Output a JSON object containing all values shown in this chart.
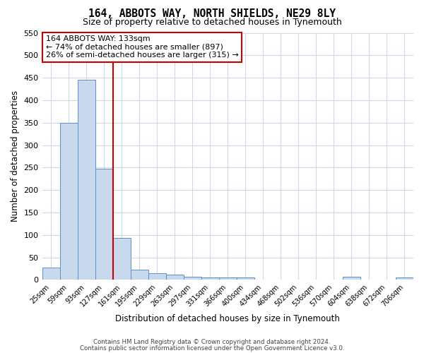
{
  "title": "164, ABBOTS WAY, NORTH SHIELDS, NE29 8LY",
  "subtitle": "Size of property relative to detached houses in Tynemouth",
  "xlabel": "Distribution of detached houses by size in Tynemouth",
  "ylabel": "Number of detached properties",
  "bar_labels": [
    "25sqm",
    "59sqm",
    "93sqm",
    "127sqm",
    "161sqm",
    "195sqm",
    "229sqm",
    "263sqm",
    "297sqm",
    "331sqm",
    "366sqm",
    "400sqm",
    "434sqm",
    "468sqm",
    "502sqm",
    "536sqm",
    "570sqm",
    "604sqm",
    "638sqm",
    "672sqm",
    "706sqm"
  ],
  "bar_heights": [
    28,
    350,
    445,
    248,
    93,
    23,
    14,
    11,
    7,
    5,
    5,
    5,
    0,
    0,
    0,
    0,
    0,
    7,
    0,
    0,
    5
  ],
  "bar_color": "#c8d9ee",
  "bar_edge_color": "#5b8fc9",
  "vline_x": 3.5,
  "vline_color": "#cc0000",
  "annotation_title": "164 ABBOTS WAY: 133sqm",
  "annotation_line1": "← 74% of detached houses are smaller (897)",
  "annotation_line2": "26% of semi-detached houses are larger (315) →",
  "annotation_box_color": "#ffffff",
  "annotation_box_edge": "#cc0000",
  "ylim": [
    0,
    550
  ],
  "yticks": [
    0,
    50,
    100,
    150,
    200,
    250,
    300,
    350,
    400,
    450,
    500,
    550
  ],
  "footer1": "Contains HM Land Registry data © Crown copyright and database right 2024.",
  "footer2": "Contains public sector information licensed under the Open Government Licence v3.0.",
  "bg_color": "#ffffff",
  "grid_color": "#d0d8e8"
}
